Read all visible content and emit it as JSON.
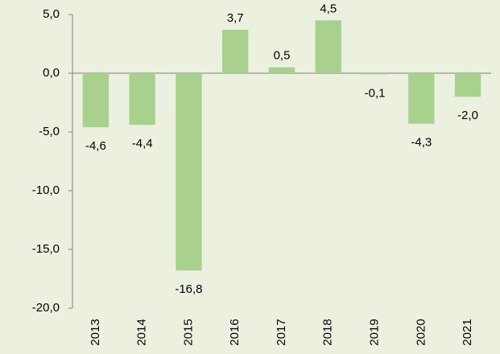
{
  "chart_data": {
    "type": "bar",
    "categories": [
      "2013",
      "2014",
      "2015",
      "2016",
      "2017",
      "2018",
      "2019",
      "2020",
      "2021"
    ],
    "values": [
      -4.6,
      -4.4,
      -16.8,
      3.7,
      0.5,
      4.5,
      -0.1,
      -4.3,
      -2.0
    ],
    "value_labels": [
      "-4,6",
      "-4,4",
      "-16,8",
      "3,7",
      "0,5",
      "4,5",
      "-0,1",
      "-4,3",
      "-2,0"
    ],
    "color": "#a9d18e",
    "ylim": [
      -20,
      5
    ],
    "yticks": [
      {
        "value": -20,
        "label": "-20,0"
      },
      {
        "value": -15,
        "label": "-15,0"
      },
      {
        "value": -10,
        "label": "-10,0"
      },
      {
        "value": -5,
        "label": "-5,0"
      },
      {
        "value": 0,
        "label": "0,0"
      },
      {
        "value": 5,
        "label": "5,0"
      }
    ],
    "grid": false
  }
}
